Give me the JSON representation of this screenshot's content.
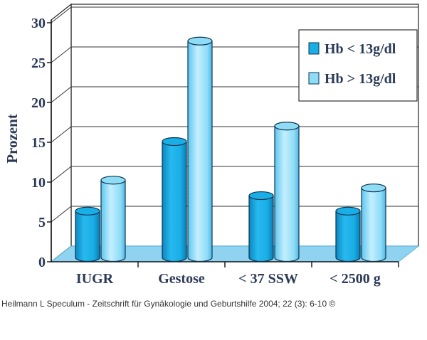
{
  "chart_data": {
    "type": "bar",
    "ylabel": "Prozent",
    "xlabel": "",
    "ylim": [
      0,
      30
    ],
    "yticks": [
      0,
      5,
      10,
      15,
      20,
      25,
      30
    ],
    "categories": [
      "IUGR",
      "Gestose",
      "< 37 SSW",
      "< 2500 g"
    ],
    "series": [
      {
        "name": "Hb < 13g/dl",
        "values": [
          6,
          15,
          8,
          6
        ],
        "color": "#1aaee6"
      },
      {
        "name": "Hb > 13g/dl",
        "values": [
          10,
          28,
          17,
          9
        ],
        "color": "#8fdcf7"
      }
    ],
    "grid": true,
    "legend_position": "top-right",
    "colors": {
      "floor": "#8fd3f0",
      "grid": "#333333",
      "text": "#2b3a57"
    }
  },
  "caption": "Heilmann L Speculum - Zeitschrift für Gynäkologie und Geburtshilfe 2004; 22 (3): 6-10 ©"
}
